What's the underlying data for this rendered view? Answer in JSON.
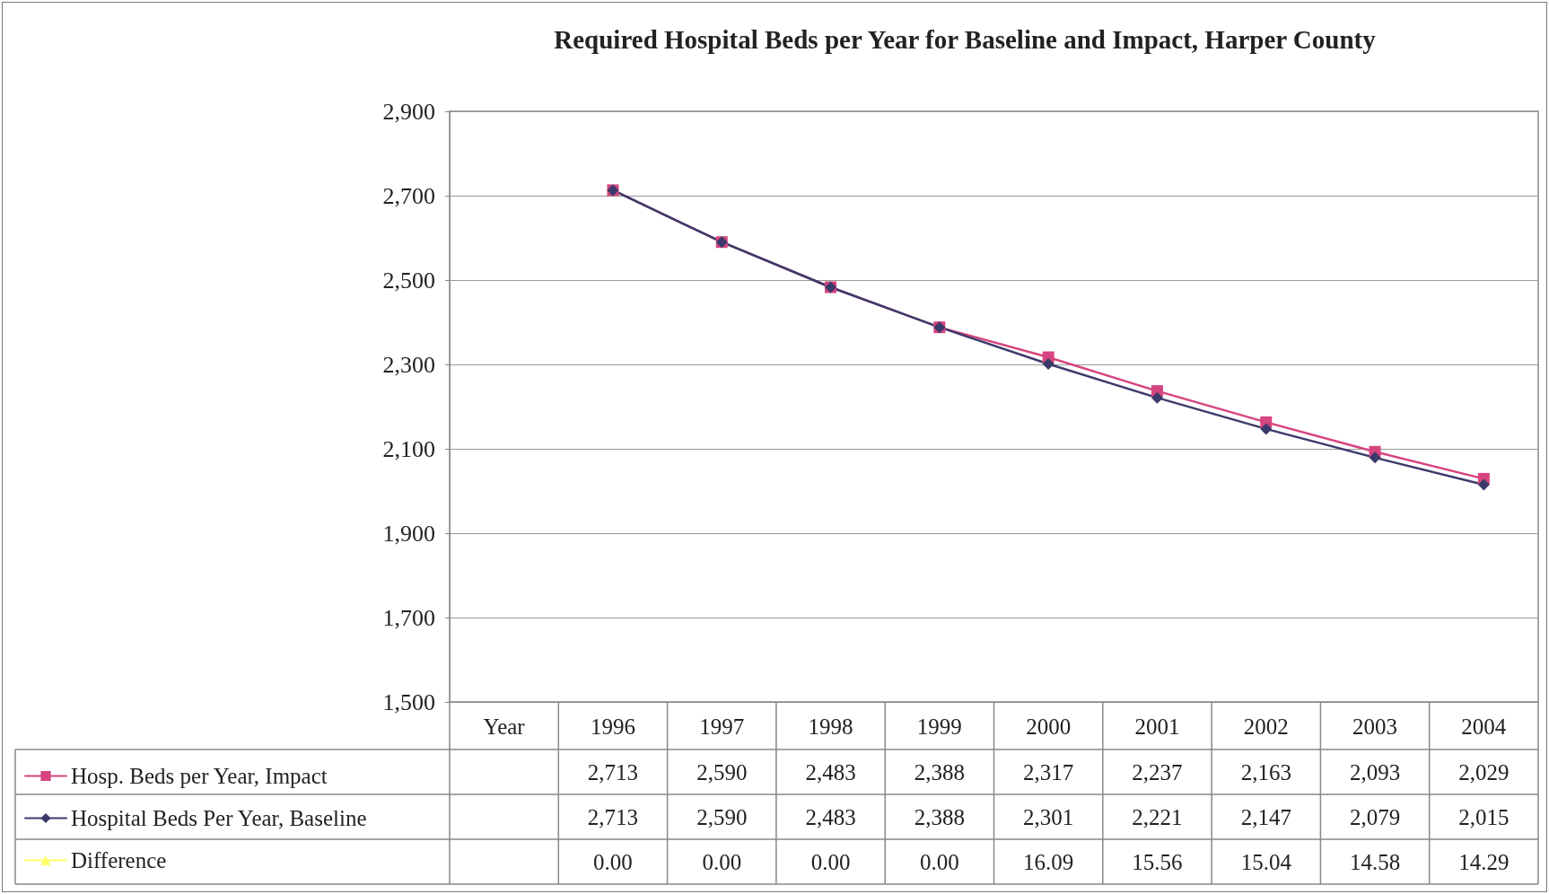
{
  "chart_data": {
    "type": "line",
    "title": "Required Hospital Beds per Year for Baseline and Impact, Harper County",
    "categories": [
      "Year",
      "1996",
      "1997",
      "1998",
      "1999",
      "2000",
      "2001",
      "2002",
      "2003",
      "2004"
    ],
    "series": [
      {
        "name": "Hosp. Beds per Year, Impact",
        "color": "#d6457f",
        "marker": "square",
        "values": [
          null,
          2713,
          2590,
          2483,
          2388,
          2317,
          2237,
          2163,
          2093,
          2029
        ],
        "value_labels": [
          null,
          "2,713",
          "2,590",
          "2,483",
          "2,388",
          "2,317",
          "2,237",
          "2,163",
          "2,093",
          "2,029"
        ]
      },
      {
        "name": "Hospital Beds Per Year, Baseline",
        "color": "#3b3b6b",
        "marker": "diamond",
        "values": [
          null,
          2713,
          2590,
          2483,
          2388,
          2301,
          2221,
          2147,
          2079,
          2015
        ],
        "value_labels": [
          null,
          "2,713",
          "2,590",
          "2,483",
          "2,388",
          "2,301",
          "2,221",
          "2,147",
          "2,079",
          "2,015"
        ]
      },
      {
        "name": "Difference",
        "color": "#ffff66",
        "marker": "triangle",
        "values": [
          null,
          null,
          null,
          null,
          null,
          null,
          null,
          null,
          null,
          null
        ],
        "value_labels": [
          null,
          "0.00",
          "0.00",
          "0.00",
          "0.00",
          "16.09",
          "15.56",
          "15.04",
          "14.58",
          "14.29"
        ]
      }
    ],
    "ylim": [
      1500,
      2900
    ],
    "yticks": [
      {
        "value": 1500,
        "label": "1,500"
      },
      {
        "value": 1700,
        "label": "1,700"
      },
      {
        "value": 1900,
        "label": "1,900"
      },
      {
        "value": 2100,
        "label": "2,100"
      },
      {
        "value": 2300,
        "label": "2,300"
      },
      {
        "value": 2500,
        "label": "2,500"
      },
      {
        "value": 2700,
        "label": "2,700"
      },
      {
        "value": 2900,
        "label": "2,900"
      }
    ],
    "grid": "y",
    "legend": "bottom left",
    "line_style": "solid"
  }
}
